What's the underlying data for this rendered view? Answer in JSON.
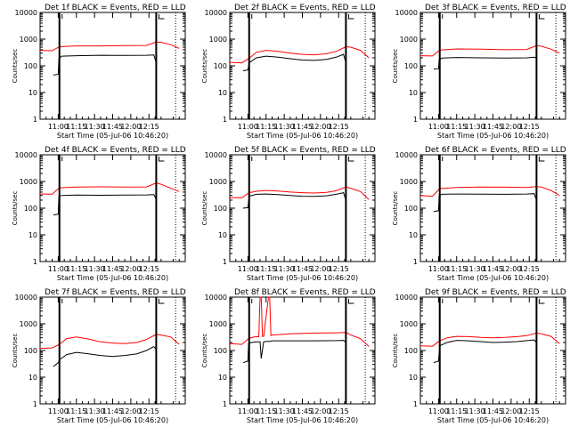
{
  "figure": {
    "x_ticks": [
      "11:00",
      "11:15",
      "11:30",
      "11:45",
      "12:00",
      "12:15"
    ],
    "y_ticks": [
      "1",
      "10",
      "100",
      "1000",
      "10000"
    ],
    "ylabel": "Counts/sec",
    "xlabel": "Start Time (05-Jul-06 10:46:20)",
    "colors": {
      "events": "#000000",
      "lld": "#ff0000",
      "marker": "#000000",
      "axes": "#000000"
    }
  },
  "chart_data": [
    {
      "type": "line",
      "title": "Det 1f BLACK = Events, RED = LLD",
      "x_range_minutes": [
        0,
        100
      ],
      "ylim": [
        1,
        10000
      ],
      "y_scale": "log",
      "markers_minutes": [
        16,
        96
      ],
      "gaps_minutes": [
        [
          96,
          99
        ]
      ],
      "series": [
        {
          "name": "Events",
          "color": "#000000",
          "x": [
            11,
            15,
            15.5,
            18,
            30,
            50,
            70,
            88,
            94,
            96
          ],
          "y": [
            45,
            48,
            190,
            230,
            240,
            250,
            245,
            250,
            255,
            130
          ]
        },
        {
          "name": "LLD",
          "color": "#ff0000",
          "x": [
            0,
            10,
            16,
            30,
            50,
            70,
            88,
            96,
            100,
            108,
            115
          ],
          "y": [
            380,
            370,
            520,
            560,
            560,
            570,
            580,
            790,
            760,
            620,
            450
          ]
        }
      ]
    },
    {
      "type": "line",
      "title": "Det 2f BLACK = Events, RED = LLD",
      "x_range_minutes": [
        0,
        100
      ],
      "ylim": [
        1,
        10000
      ],
      "y_scale": "log",
      "markers_minutes": [
        16,
        96
      ],
      "gaps_minutes": [
        [
          96,
          99
        ]
      ],
      "series": [
        {
          "name": "Events",
          "color": "#000000",
          "x": [
            11,
            15,
            16,
            22,
            30,
            40,
            50,
            60,
            70,
            80,
            88,
            94,
            96
          ],
          "y": [
            65,
            70,
            130,
            200,
            230,
            210,
            185,
            165,
            160,
            175,
            210,
            270,
            130
          ]
        },
        {
          "name": "LLD",
          "color": "#ff0000",
          "x": [
            0,
            10,
            16,
            22,
            30,
            40,
            50,
            60,
            70,
            80,
            88,
            96,
            100,
            108,
            115
          ],
          "y": [
            135,
            130,
            190,
            320,
            380,
            350,
            300,
            270,
            260,
            285,
            350,
            520,
            500,
            380,
            200
          ]
        }
      ]
    },
    {
      "type": "line",
      "title": "Det 3f BLACK = Events, RED = LLD",
      "x_range_minutes": [
        0,
        100
      ],
      "ylim": [
        1,
        10000
      ],
      "y_scale": "log",
      "markers_minutes": [
        16,
        96
      ],
      "gaps_minutes": [
        [
          96,
          99
        ]
      ],
      "series": [
        {
          "name": "Events",
          "color": "#000000",
          "x": [
            11,
            15,
            15.5,
            18,
            30,
            50,
            70,
            88,
            94,
            96
          ],
          "y": [
            75,
            78,
            170,
            195,
            205,
            200,
            195,
            200,
            210,
            200
          ]
        },
        {
          "name": "LLD",
          "color": "#ff0000",
          "x": [
            0,
            10,
            16,
            30,
            50,
            70,
            88,
            96,
            100,
            108,
            115
          ],
          "y": [
            240,
            235,
            390,
            430,
            420,
            400,
            410,
            570,
            540,
            420,
            300
          ]
        }
      ]
    },
    {
      "type": "line",
      "title": "Det 4f BLACK = Events, RED = LLD",
      "x_range_minutes": [
        0,
        100
      ],
      "ylim": [
        1,
        10000
      ],
      "y_scale": "log",
      "markers_minutes": [
        16,
        96
      ],
      "gaps_minutes": [
        [
          96,
          99
        ]
      ],
      "series": [
        {
          "name": "Events",
          "color": "#000000",
          "x": [
            11,
            15,
            15.5,
            18,
            30,
            50,
            70,
            88,
            94,
            96
          ],
          "y": [
            55,
            60,
            280,
            300,
            310,
            305,
            310,
            315,
            320,
            220
          ]
        },
        {
          "name": "LLD",
          "color": "#ff0000",
          "x": [
            0,
            10,
            16,
            30,
            50,
            70,
            88,
            96,
            100,
            108,
            115
          ],
          "y": [
            340,
            335,
            580,
            620,
            630,
            620,
            625,
            880,
            790,
            560,
            420
          ]
        }
      ]
    },
    {
      "type": "line",
      "title": "Det 5f BLACK = Events, RED = LLD",
      "x_range_minutes": [
        0,
        100
      ],
      "ylim": [
        1,
        10000
      ],
      "y_scale": "log",
      "markers_minutes": [
        16,
        96
      ],
      "gaps_minutes": [
        [
          96,
          99
        ]
      ],
      "series": [
        {
          "name": "Events",
          "color": "#000000",
          "x": [
            11,
            15,
            16,
            22,
            30,
            40,
            50,
            60,
            70,
            80,
            88,
            94,
            96
          ],
          "y": [
            100,
            105,
            280,
            330,
            340,
            320,
            300,
            280,
            275,
            290,
            330,
            380,
            200
          ]
        },
        {
          "name": "LLD",
          "color": "#ff0000",
          "x": [
            0,
            10,
            16,
            22,
            30,
            40,
            50,
            60,
            70,
            80,
            88,
            96,
            100,
            108,
            115
          ],
          "y": [
            250,
            245,
            380,
            430,
            460,
            440,
            400,
            380,
            370,
            390,
            450,
            620,
            560,
            420,
            210
          ]
        }
      ]
    },
    {
      "type": "line",
      "title": "Det 6f BLACK = Events, RED = LLD",
      "x_range_minutes": [
        0,
        100
      ],
      "ylim": [
        1,
        10000
      ],
      "y_scale": "log",
      "markers_minutes": [
        16,
        96
      ],
      "gaps_minutes": [
        [
          96,
          99
        ]
      ],
      "series": [
        {
          "name": "Events",
          "color": "#000000",
          "x": [
            11,
            15,
            15.5,
            18,
            30,
            50,
            70,
            88,
            94,
            96
          ],
          "y": [
            75,
            80,
            300,
            330,
            340,
            335,
            330,
            340,
            350,
            200
          ]
        },
        {
          "name": "LLD",
          "color": "#ff0000",
          "x": [
            0,
            10,
            16,
            30,
            50,
            70,
            88,
            96,
            100,
            108,
            115
          ],
          "y": [
            300,
            280,
            540,
            600,
            620,
            610,
            600,
            640,
            620,
            460,
            300
          ]
        }
      ]
    },
    {
      "type": "line",
      "title": "Det 7f BLACK = Events, RED = LLD",
      "x_range_minutes": [
        0,
        100
      ],
      "ylim": [
        1,
        10000
      ],
      "y_scale": "log",
      "markers_minutes": [
        16,
        96
      ],
      "gaps_minutes": [
        [
          96,
          99
        ]
      ],
      "series": [
        {
          "name": "Events",
          "color": "#000000",
          "x": [
            11,
            15,
            16,
            22,
            30,
            40,
            50,
            60,
            70,
            80,
            88,
            94,
            96
          ],
          "y": [
            25,
            35,
            45,
            70,
            85,
            75,
            65,
            60,
            65,
            75,
            100,
            140,
            110
          ]
        },
        {
          "name": "LLD",
          "color": "#ff0000",
          "x": [
            0,
            10,
            16,
            22,
            30,
            40,
            50,
            60,
            70,
            80,
            88,
            96,
            100,
            108,
            115
          ],
          "y": [
            120,
            125,
            170,
            280,
            320,
            270,
            210,
            190,
            180,
            200,
            260,
            400,
            380,
            320,
            170
          ]
        }
      ]
    },
    {
      "type": "line",
      "title": "Det 8f BLACK = Events, RED = LLD",
      "x_range_minutes": [
        0,
        100
      ],
      "ylim": [
        1,
        10000
      ],
      "y_scale": "log",
      "markers_minutes": [
        16,
        96
      ],
      "gaps_minutes": [
        [
          96,
          99
        ]
      ],
      "series": [
        {
          "name": "Events",
          "color": "#000000",
          "x": [
            11,
            15,
            15.5,
            18,
            22,
            25,
            26,
            28,
            30,
            32,
            33,
            35,
            50,
            70,
            88,
            94,
            96
          ],
          "y": [
            35,
            40,
            180,
            200,
            210,
            210,
            50,
            210,
            220,
            220,
            220,
            230,
            230,
            230,
            235,
            240,
            200
          ]
        },
        {
          "name": "LLD",
          "color": "#ff0000",
          "x": [
            0,
            10,
            16,
            20,
            24,
            25,
            26,
            27,
            28,
            32,
            33,
            34,
            35,
            50,
            70,
            88,
            96,
            100,
            108,
            115
          ],
          "y": [
            180,
            170,
            290,
            320,
            330,
            10000,
            10000,
            340,
            340,
            10000,
            10000,
            360,
            380,
            420,
            450,
            460,
            470,
            380,
            280,
            140
          ]
        }
      ]
    },
    {
      "type": "line",
      "title": "Det 9f BLACK = Events, RED = LLD",
      "x_range_minutes": [
        0,
        100
      ],
      "ylim": [
        1,
        10000
      ],
      "y_scale": "log",
      "markers_minutes": [
        16,
        96
      ],
      "gaps_minutes": [
        [
          96,
          99
        ]
      ],
      "series": [
        {
          "name": "Events",
          "color": "#000000",
          "x": [
            11,
            15,
            16,
            22,
            30,
            40,
            50,
            60,
            70,
            80,
            88,
            94,
            96
          ],
          "y": [
            35,
            40,
            150,
            200,
            240,
            230,
            215,
            200,
            205,
            215,
            235,
            250,
            200
          ]
        },
        {
          "name": "LLD",
          "color": "#ff0000",
          "x": [
            0,
            10,
            16,
            22,
            30,
            40,
            50,
            60,
            70,
            80,
            88,
            96,
            100,
            108,
            115
          ],
          "y": [
            150,
            145,
            230,
            300,
            340,
            330,
            310,
            300,
            310,
            330,
            360,
            450,
            420,
            340,
            180
          ]
        }
      ]
    }
  ]
}
